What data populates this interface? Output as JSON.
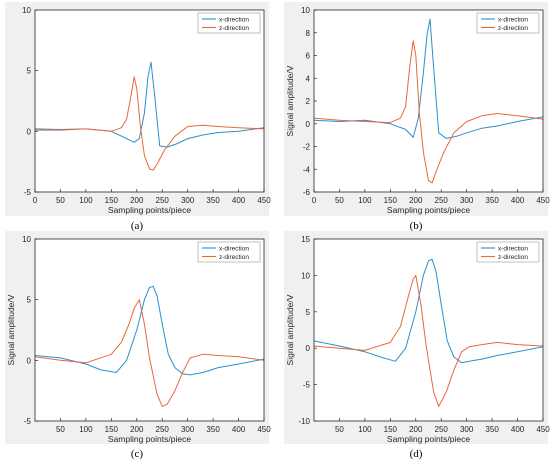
{
  "colors": {
    "x_direction": "#2b8fcc",
    "z_direction": "#e8683a",
    "figure_background": "#f0f0f0",
    "axes_background": "#ffffff",
    "axis": "#262626"
  },
  "captions": [
    "(a)",
    "(b)",
    "(c)",
    "(d)"
  ],
  "chart_data": [
    {
      "type": "line",
      "xlabel": "Sampling points/piece",
      "ylabel": "",
      "xlim": [
        0,
        450
      ],
      "ylim": [
        -5,
        10
      ],
      "xticks": [
        0,
        50,
        100,
        150,
        200,
        250,
        300,
        350,
        400,
        450
      ],
      "yticks": [
        -5,
        0,
        5,
        10
      ],
      "legend_position": "top-right",
      "legend": [
        "x-direction",
        "z-direction"
      ],
      "series": [
        {
          "name": "x-direction",
          "x": [
            0,
            50,
            100,
            150,
            180,
            195,
            205,
            215,
            222,
            228,
            235,
            245,
            260,
            280,
            300,
            330,
            360,
            400,
            450
          ],
          "y": [
            0.2,
            0.15,
            0.2,
            0.0,
            -0.6,
            -0.9,
            -0.6,
            1.5,
            4.5,
            5.7,
            3.0,
            -1.2,
            -1.3,
            -1.0,
            -0.6,
            -0.3,
            -0.1,
            0.0,
            0.3
          ]
        },
        {
          "name": "z-direction",
          "x": [
            0,
            50,
            100,
            150,
            170,
            180,
            188,
            195,
            200,
            207,
            215,
            225,
            232,
            240,
            255,
            275,
            300,
            330,
            360,
            400,
            450
          ],
          "y": [
            0.1,
            0.1,
            0.2,
            0.0,
            0.3,
            1.0,
            2.8,
            4.5,
            3.5,
            0.5,
            -2.0,
            -3.1,
            -3.2,
            -2.7,
            -1.5,
            -0.4,
            0.4,
            0.5,
            0.4,
            0.3,
            0.2
          ]
        }
      ]
    },
    {
      "type": "line",
      "xlabel": "Sampling points/piece",
      "ylabel": "Signal amplitude/V",
      "xlim": [
        0,
        450
      ],
      "ylim": [
        -6,
        10
      ],
      "xticks": [
        0,
        50,
        100,
        150,
        200,
        250,
        300,
        350,
        400,
        450
      ],
      "yticks": [
        -6,
        -4,
        -2,
        0,
        2,
        4,
        6,
        8,
        10
      ],
      "legend_position": "top-right",
      "legend": [
        "x-direction",
        "z-direction"
      ],
      "series": [
        {
          "name": "x-direction",
          "x": [
            0,
            50,
            100,
            150,
            180,
            195,
            205,
            215,
            222,
            228,
            235,
            245,
            260,
            280,
            300,
            330,
            360,
            400,
            450
          ],
          "y": [
            0.3,
            0.2,
            0.3,
            0.0,
            -0.5,
            -1.2,
            0.5,
            4.5,
            7.8,
            9.2,
            5.0,
            -0.8,
            -1.3,
            -1.1,
            -0.8,
            -0.4,
            -0.2,
            0.2,
            0.6
          ]
        },
        {
          "name": "z-direction",
          "x": [
            0,
            50,
            100,
            150,
            170,
            180,
            188,
            195,
            200,
            207,
            215,
            225,
            232,
            240,
            255,
            275,
            300,
            330,
            360,
            400,
            450
          ],
          "y": [
            0.5,
            0.3,
            0.2,
            0.1,
            0.5,
            1.5,
            5.0,
            7.3,
            6.0,
            1.0,
            -2.5,
            -5.0,
            -5.2,
            -4.2,
            -2.5,
            -0.8,
            0.2,
            0.7,
            0.9,
            0.7,
            0.4
          ]
        }
      ]
    },
    {
      "type": "line",
      "xlabel": "Sampling points/piece",
      "ylabel": "Signal amplitude/V",
      "xlim": [
        0,
        450
      ],
      "ylim": [
        -5,
        10
      ],
      "xticks": [
        50,
        100,
        150,
        200,
        250,
        300,
        350,
        400,
        450
      ],
      "yticks": [
        -5,
        0,
        5,
        10
      ],
      "legend_position": "top-right",
      "legend": [
        "x-direction",
        "z-direction"
      ],
      "series": [
        {
          "name": "x-direction",
          "x": [
            0,
            50,
            100,
            130,
            160,
            180,
            200,
            215,
            225,
            232,
            240,
            250,
            262,
            275,
            290,
            305,
            330,
            360,
            400,
            450
          ],
          "y": [
            0.4,
            0.2,
            -0.3,
            -0.8,
            -1.0,
            0.0,
            2.5,
            5.0,
            6.0,
            6.1,
            5.3,
            3.0,
            0.5,
            -0.6,
            -1.1,
            -1.2,
            -1.0,
            -0.6,
            -0.3,
            0.1
          ]
        },
        {
          "name": "z-direction",
          "x": [
            0,
            50,
            100,
            150,
            170,
            185,
            195,
            205,
            215,
            225,
            240,
            250,
            260,
            275,
            290,
            305,
            330,
            360,
            400,
            450
          ],
          "y": [
            0.3,
            0.0,
            -0.2,
            0.5,
            1.5,
            3.0,
            4.3,
            5.0,
            3.0,
            0.2,
            -2.8,
            -3.8,
            -3.6,
            -2.5,
            -1.0,
            0.2,
            0.5,
            0.4,
            0.3,
            0.0
          ]
        }
      ]
    },
    {
      "type": "line",
      "xlabel": "Sampling points/piece",
      "ylabel": "Signal amplitude/V",
      "xlim": [
        0,
        450
      ],
      "ylim": [
        -10,
        15
      ],
      "xticks": [
        50,
        100,
        150,
        200,
        250,
        300,
        350,
        400,
        450
      ],
      "yticks": [
        -10,
        -5,
        0,
        5,
        10,
        15
      ],
      "legend_position": "top-right",
      "legend": [
        "x-direction",
        "z-direction"
      ],
      "series": [
        {
          "name": "x-direction",
          "x": [
            0,
            50,
            100,
            130,
            160,
            180,
            200,
            215,
            225,
            232,
            240,
            250,
            262,
            275,
            290,
            305,
            330,
            360,
            400,
            450
          ],
          "y": [
            1.0,
            0.3,
            -0.5,
            -1.2,
            -1.8,
            0.0,
            5.0,
            10.0,
            12.0,
            12.2,
            10.5,
            6.0,
            1.0,
            -1.2,
            -2.0,
            -1.8,
            -1.5,
            -1.0,
            -0.5,
            0.2
          ]
        },
        {
          "name": "z-direction",
          "x": [
            0,
            50,
            100,
            150,
            170,
            185,
            195,
            200,
            210,
            220,
            235,
            245,
            260,
            275,
            290,
            305,
            330,
            360,
            400,
            450
          ],
          "y": [
            0.3,
            0.0,
            -0.3,
            0.8,
            3.0,
            7.0,
            9.5,
            10.0,
            6.0,
            0.5,
            -6.0,
            -8.0,
            -6.0,
            -3.0,
            -0.5,
            0.2,
            0.5,
            0.8,
            0.5,
            0.3
          ]
        }
      ]
    }
  ]
}
